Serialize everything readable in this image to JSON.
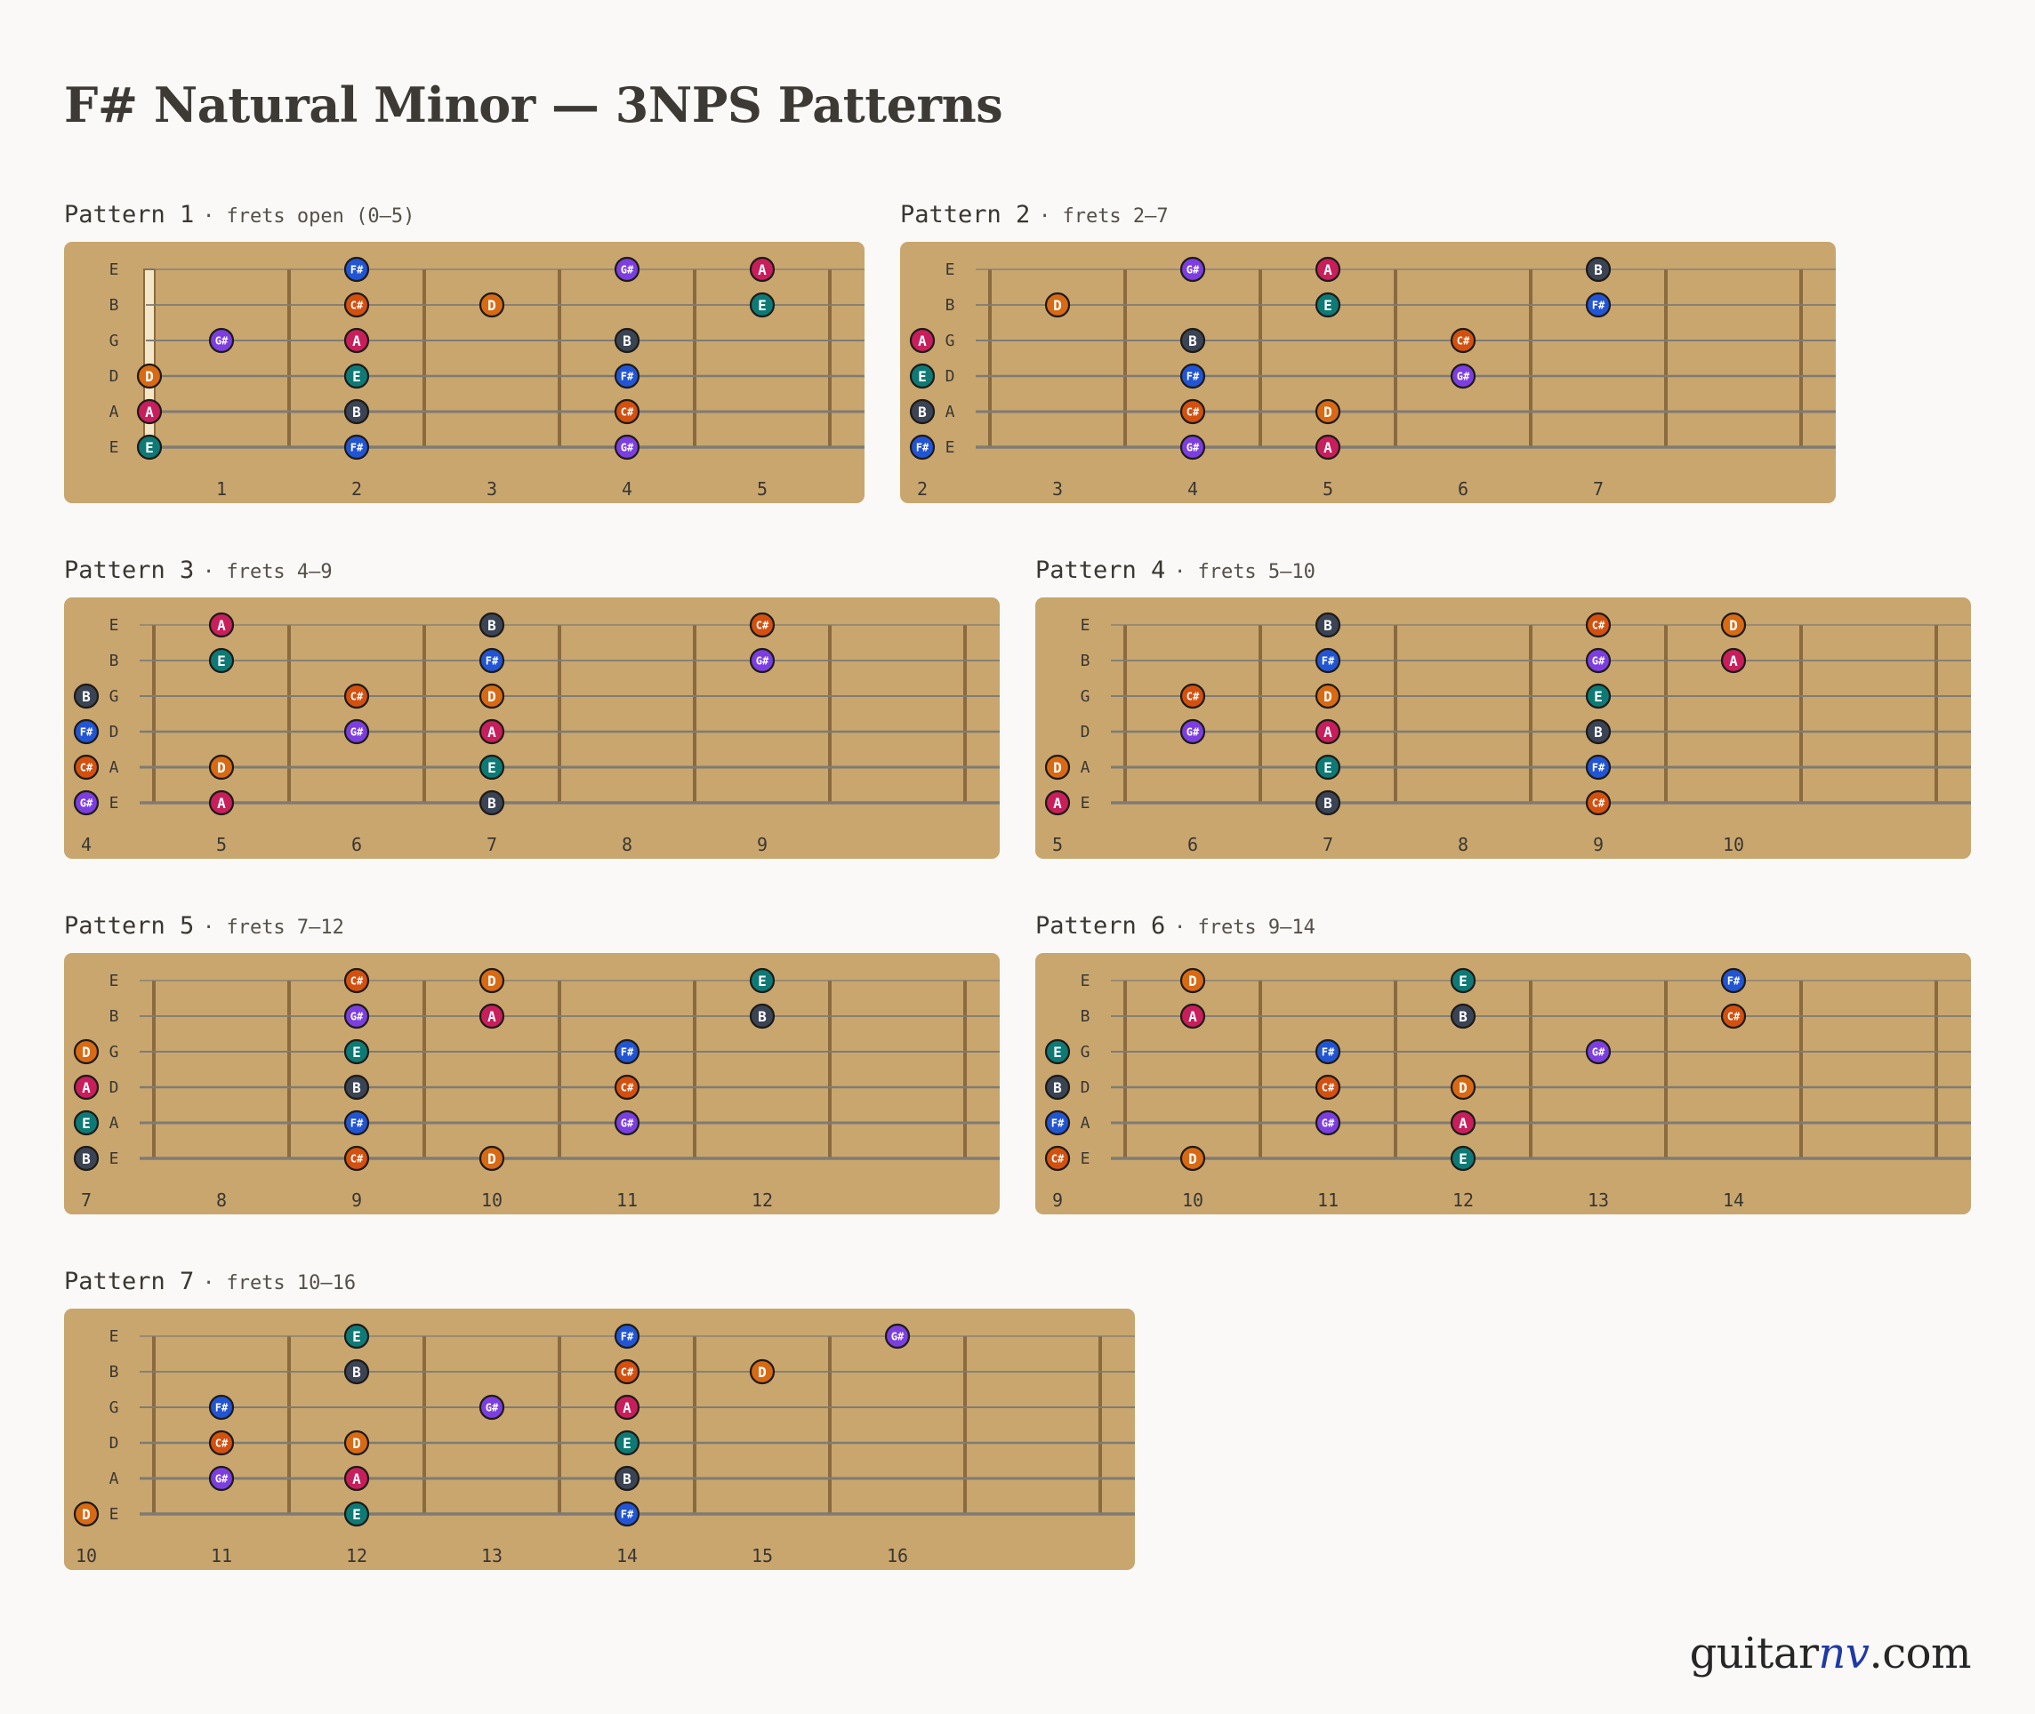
{
  "title": "F# Natural Minor — 3NPS Patterns",
  "brand": {
    "prefix": "guitar",
    "accent": "nv",
    "suffix": ".com"
  },
  "string_labels": [
    "E",
    "B",
    "G",
    "D",
    "A",
    "E"
  ],
  "note_colors": {
    "F#": "#2255d4",
    "G#": "#7c3ee0",
    "A": "#c81e5b",
    "B": "#3b4454",
    "C#": "#d4500f",
    "D": "#d86a14",
    "E": "#0e7a76"
  },
  "board_colors": {
    "wood": "#c8a66e",
    "fret": "#8a6a3e",
    "string": "#7f7b74",
    "nut": "#f4e6c8"
  },
  "patterns": [
    {
      "name": "Pattern 1",
      "range": "frets open (0–5)",
      "fret_start": 0,
      "fret_end": 5,
      "fret_numbers": [
        "1",
        "2",
        "3",
        "4",
        "5"
      ],
      "notes": [
        [
          "F#",
          2,
          1
        ],
        [
          "G#",
          4,
          1
        ],
        [
          "A",
          5,
          1
        ],
        [
          "C#",
          2,
          2
        ],
        [
          "D",
          3,
          2
        ],
        [
          "E",
          5,
          2
        ],
        [
          "G#",
          1,
          3
        ],
        [
          "A",
          2,
          3
        ],
        [
          "B",
          4,
          3
        ],
        [
          "D",
          0,
          4
        ],
        [
          "E",
          2,
          4
        ],
        [
          "F#",
          4,
          4
        ],
        [
          "A",
          0,
          5
        ],
        [
          "B",
          2,
          5
        ],
        [
          "C#",
          4,
          5
        ],
        [
          "E",
          0,
          6
        ],
        [
          "F#",
          2,
          6
        ],
        [
          "G#",
          4,
          6
        ]
      ]
    },
    {
      "name": "Pattern 2",
      "range": "frets 2–7",
      "fret_start": 2,
      "fret_end": 7,
      "fret_numbers": [
        "2",
        "3",
        "4",
        "5",
        "6",
        "7"
      ],
      "notes": [
        [
          "G#",
          4,
          1
        ],
        [
          "A",
          5,
          1
        ],
        [
          "B",
          7,
          1
        ],
        [
          "D",
          3,
          2
        ],
        [
          "E",
          5,
          2
        ],
        [
          "F#",
          7,
          2
        ],
        [
          "A",
          2,
          3
        ],
        [
          "B",
          4,
          3
        ],
        [
          "C#",
          6,
          3
        ],
        [
          "E",
          2,
          4
        ],
        [
          "F#",
          4,
          4
        ],
        [
          "G#",
          6,
          4
        ],
        [
          "B",
          2,
          5
        ],
        [
          "C#",
          4,
          5
        ],
        [
          "D",
          5,
          5
        ],
        [
          "F#",
          2,
          6
        ],
        [
          "G#",
          4,
          6
        ],
        [
          "A",
          5,
          6
        ]
      ]
    },
    {
      "name": "Pattern 3",
      "range": "frets 4–9",
      "fret_start": 4,
      "fret_end": 9,
      "fret_numbers": [
        "4",
        "5",
        "6",
        "7",
        "8",
        "9"
      ],
      "notes": [
        [
          "A",
          5,
          1
        ],
        [
          "B",
          7,
          1
        ],
        [
          "C#",
          9,
          1
        ],
        [
          "E",
          5,
          2
        ],
        [
          "F#",
          7,
          2
        ],
        [
          "G#",
          9,
          2
        ],
        [
          "B",
          4,
          3
        ],
        [
          "C#",
          6,
          3
        ],
        [
          "D",
          7,
          3
        ],
        [
          "F#",
          4,
          4
        ],
        [
          "G#",
          6,
          4
        ],
        [
          "A",
          7,
          4
        ],
        [
          "C#",
          4,
          5
        ],
        [
          "D",
          5,
          5
        ],
        [
          "E",
          7,
          5
        ],
        [
          "G#",
          4,
          6
        ],
        [
          "A",
          5,
          6
        ],
        [
          "B",
          7,
          6
        ]
      ]
    },
    {
      "name": "Pattern 4",
      "range": "frets 5–10",
      "fret_start": 5,
      "fret_end": 10,
      "fret_numbers": [
        "5",
        "6",
        "7",
        "8",
        "9",
        "10"
      ],
      "notes": [
        [
          "B",
          7,
          1
        ],
        [
          "C#",
          9,
          1
        ],
        [
          "D",
          10,
          1
        ],
        [
          "F#",
          7,
          2
        ],
        [
          "G#",
          9,
          2
        ],
        [
          "A",
          10,
          2
        ],
        [
          "C#",
          6,
          3
        ],
        [
          "D",
          7,
          3
        ],
        [
          "E",
          9,
          3
        ],
        [
          "G#",
          6,
          4
        ],
        [
          "A",
          7,
          4
        ],
        [
          "B",
          9,
          4
        ],
        [
          "D",
          5,
          5
        ],
        [
          "E",
          7,
          5
        ],
        [
          "F#",
          9,
          5
        ],
        [
          "A",
          5,
          6
        ],
        [
          "B",
          7,
          6
        ],
        [
          "C#",
          9,
          6
        ]
      ]
    },
    {
      "name": "Pattern 5",
      "range": "frets 7–12",
      "fret_start": 7,
      "fret_end": 12,
      "fret_numbers": [
        "7",
        "8",
        "9",
        "10",
        "11",
        "12"
      ],
      "notes": [
        [
          "C#",
          9,
          1
        ],
        [
          "D",
          10,
          1
        ],
        [
          "E",
          12,
          1
        ],
        [
          "G#",
          9,
          2
        ],
        [
          "A",
          10,
          2
        ],
        [
          "B",
          12,
          2
        ],
        [
          "D",
          7,
          3
        ],
        [
          "E",
          9,
          3
        ],
        [
          "F#",
          11,
          3
        ],
        [
          "A",
          7,
          4
        ],
        [
          "B",
          9,
          4
        ],
        [
          "C#",
          11,
          4
        ],
        [
          "E",
          7,
          5
        ],
        [
          "F#",
          9,
          5
        ],
        [
          "G#",
          11,
          5
        ],
        [
          "B",
          7,
          6
        ],
        [
          "C#",
          9,
          6
        ],
        [
          "D",
          10,
          6
        ]
      ]
    },
    {
      "name": "Pattern 6",
      "range": "frets 9–14",
      "fret_start": 9,
      "fret_end": 14,
      "fret_numbers": [
        "9",
        "10",
        "11",
        "12",
        "13",
        "14"
      ],
      "notes": [
        [
          "D",
          10,
          1
        ],
        [
          "E",
          12,
          1
        ],
        [
          "F#",
          14,
          1
        ],
        [
          "A",
          10,
          2
        ],
        [
          "B",
          12,
          2
        ],
        [
          "C#",
          14,
          2
        ],
        [
          "E",
          9,
          3
        ],
        [
          "F#",
          11,
          3
        ],
        [
          "G#",
          13,
          3
        ],
        [
          "B",
          9,
          4
        ],
        [
          "C#",
          11,
          4
        ],
        [
          "D",
          12,
          4
        ],
        [
          "F#",
          9,
          5
        ],
        [
          "G#",
          11,
          5
        ],
        [
          "A",
          12,
          5
        ],
        [
          "C#",
          9,
          6
        ],
        [
          "D",
          10,
          6
        ],
        [
          "E",
          12,
          6
        ]
      ]
    },
    {
      "name": "Pattern 7",
      "range": "frets 10–16",
      "fret_start": 10,
      "fret_end": 16,
      "fret_numbers": [
        "10",
        "11",
        "12",
        "13",
        "14",
        "15",
        "16"
      ],
      "notes": [
        [
          "E",
          12,
          1
        ],
        [
          "F#",
          14,
          1
        ],
        [
          "G#",
          16,
          1
        ],
        [
          "B",
          12,
          2
        ],
        [
          "C#",
          14,
          2
        ],
        [
          "D",
          15,
          2
        ],
        [
          "F#",
          11,
          3
        ],
        [
          "G#",
          13,
          3
        ],
        [
          "A",
          14,
          3
        ],
        [
          "C#",
          11,
          4
        ],
        [
          "D",
          12,
          4
        ],
        [
          "E",
          14,
          4
        ],
        [
          "G#",
          11,
          5
        ],
        [
          "A",
          12,
          5
        ],
        [
          "B",
          14,
          5
        ],
        [
          "D",
          10,
          6
        ],
        [
          "E",
          12,
          6
        ],
        [
          "F#",
          14,
          6
        ]
      ]
    }
  ]
}
